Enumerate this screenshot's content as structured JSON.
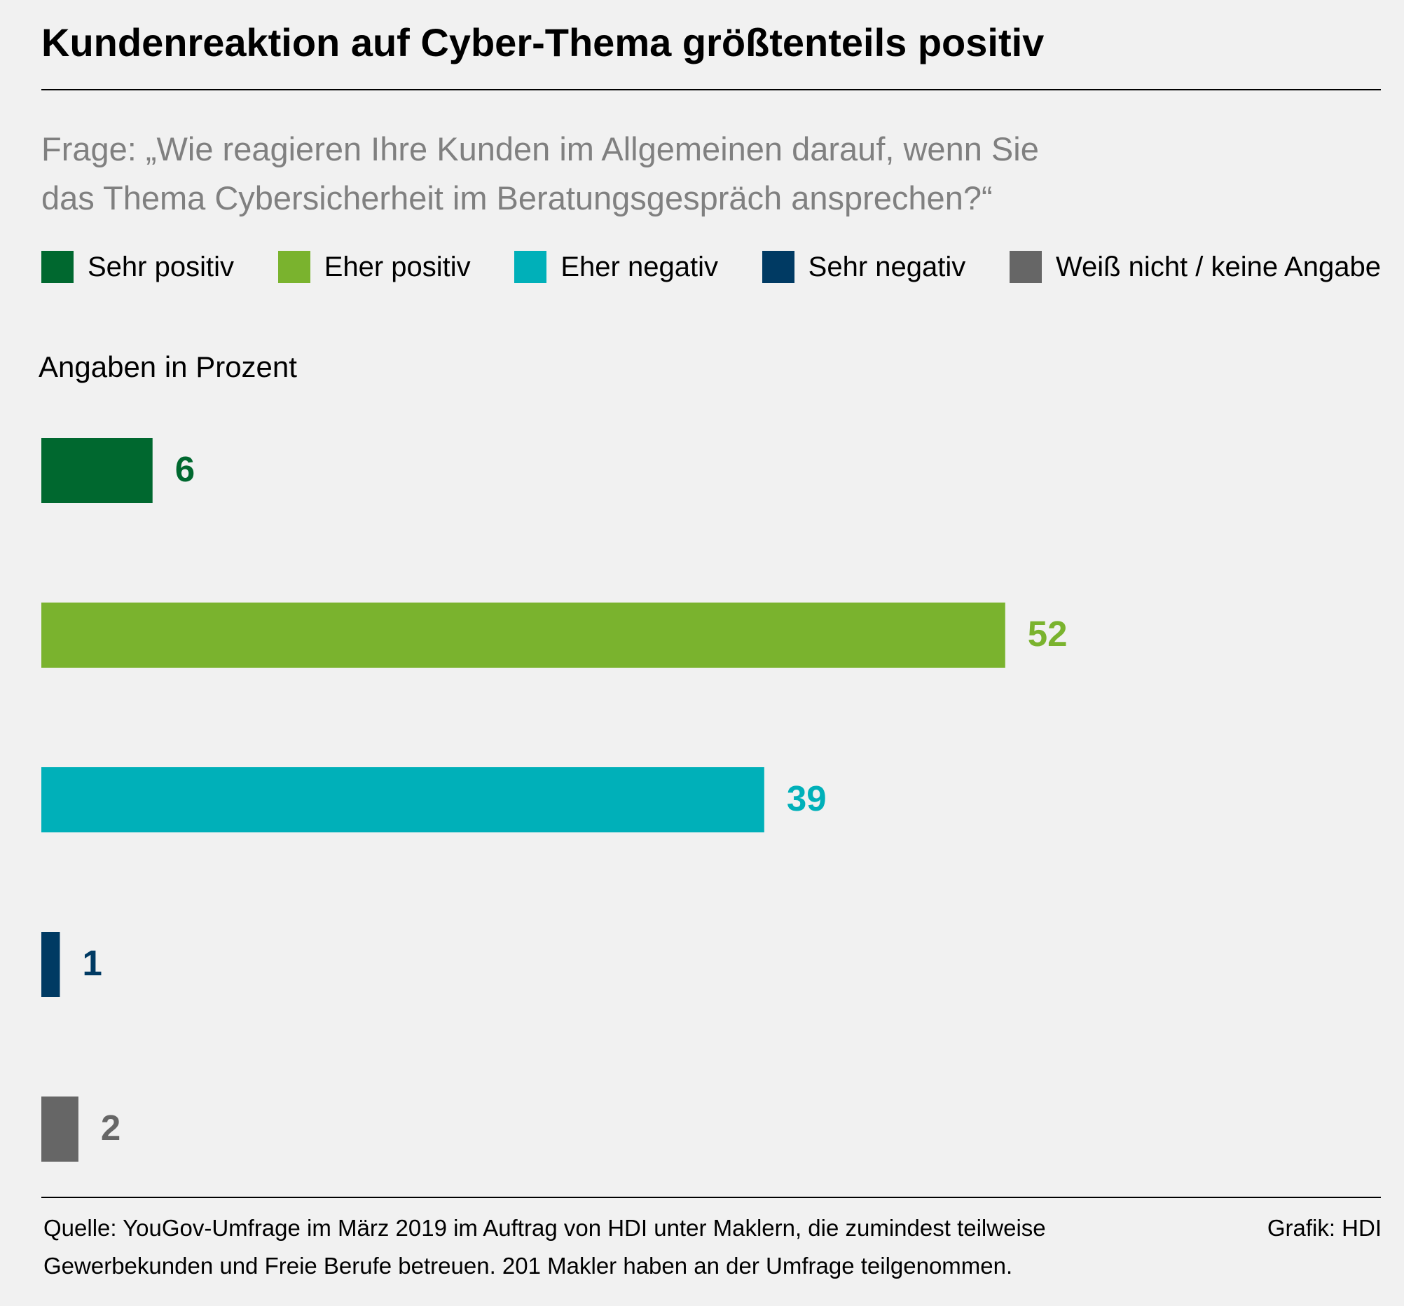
{
  "chart_data": {
    "type": "bar",
    "orientation": "horizontal",
    "title": "Kundenreaktion auf Cyber-Thema größtenteils positiv",
    "subtitle": "Frage: „Wie reagieren Ihre Kunden im Allgemeinen darauf, wenn Sie\ndas Thema Cybersicherheit im Beratungsgespräch ansprechen?“",
    "axis_label": "Angaben in Prozent",
    "source": "Quelle: YouGov-Umfrage im März 2019 im Auftrag von HDI unter Maklern, die zumindest teilweise\nGewerbekunden und Freie Berufe betreuen. 201 Makler haben an der Umfrage teilgenommen.",
    "credit": "Grafik: HDI",
    "categories": [
      null
    ],
    "series": [
      {
        "name": "Sehr positiv",
        "color": "#00682f",
        "values": [
          6
        ]
      },
      {
        "name": "Eher positiv",
        "color": "#7ab32e",
        "values": [
          52
        ]
      },
      {
        "name": "Eher negativ",
        "color": "#00b0b9",
        "values": [
          39
        ]
      },
      {
        "name": "Sehr negativ",
        "color": "#003a63",
        "values": [
          1
        ]
      },
      {
        "name": "Weiß nicht / keine Angabe",
        "color": "#666666",
        "values": [
          2
        ]
      }
    ],
    "xlim": [
      0,
      70
    ]
  }
}
